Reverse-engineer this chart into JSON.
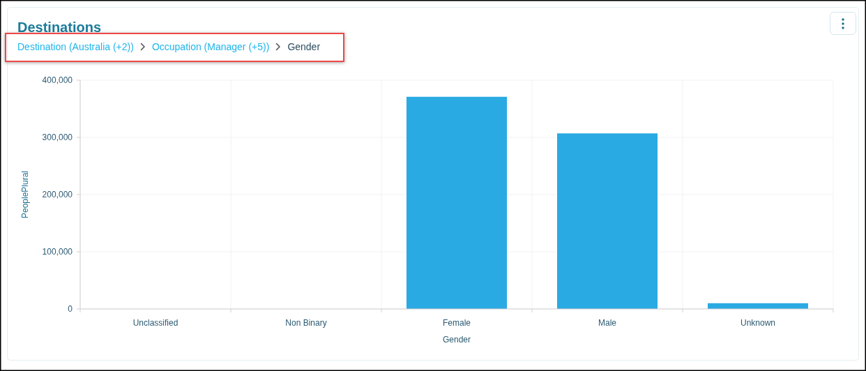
{
  "chart_data": {
    "type": "bar",
    "title": "Destinations",
    "annotations": [
      "Destination (Australia (+2))",
      "Occupation (Manager (+5))",
      "Gender"
    ],
    "xlabel": "Gender",
    "ylabel": "PeoplePlural",
    "categories": [
      "Unclassified",
      "Non Binary",
      "Female",
      "Male",
      "Unknown"
    ],
    "values": [
      0,
      0,
      371000,
      307000,
      10000
    ],
    "color": "#2aaae2",
    "ylim": [
      0,
      400000
    ],
    "yticks": [
      0,
      {
        "value": 100000,
        "label": "100,000"
      },
      {
        "value": 200000,
        "label": "200,000"
      },
      {
        "value": 300000,
        "label": "300,000"
      },
      {
        "value": 400000,
        "label": "400,000"
      }
    ],
    "grid": true
  }
}
